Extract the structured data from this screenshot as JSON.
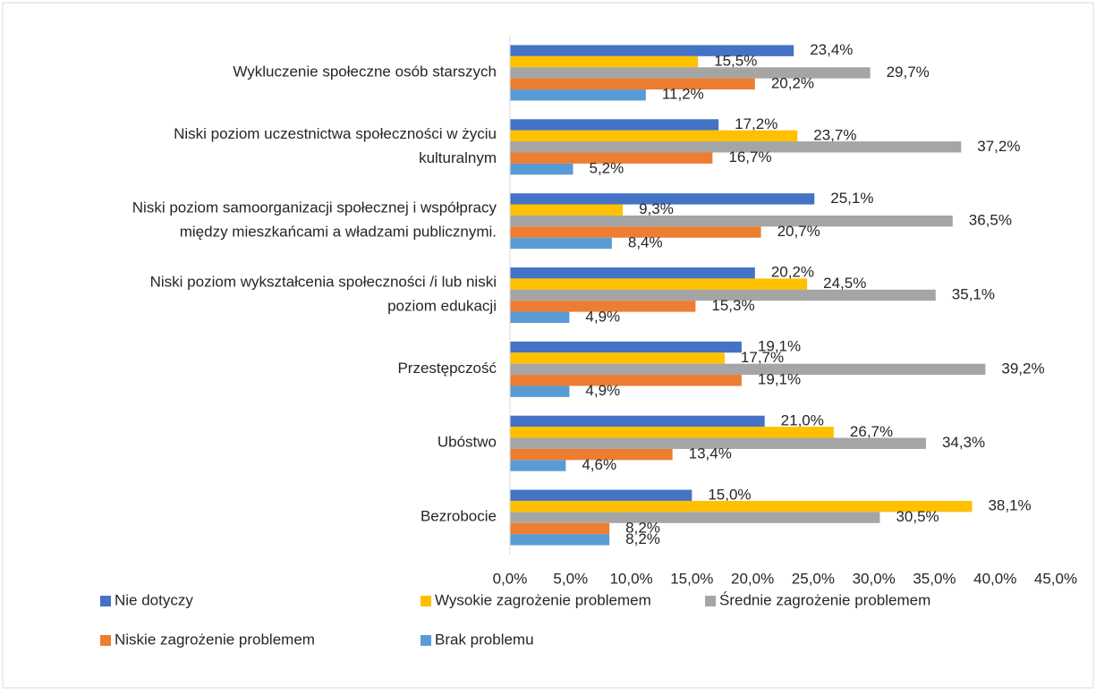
{
  "chart_data": {
    "type": "hbar",
    "categories": [
      [
        "Wykluczenie społeczne osób starszych"
      ],
      [
        "Niski poziom uczestnictwa społeczności w życiu",
        "kulturalnym"
      ],
      [
        "Niski poziom samoorganizacji społecznej i współpracy",
        "między mieszkańcami  a władzami publicznymi."
      ],
      [
        "Niski poziom wykształcenia społeczności /i lub niski",
        "poziom edukacji"
      ],
      [
        "Przestępczość"
      ],
      [
        "Ubóstwo"
      ],
      [
        "Bezrobocie"
      ]
    ],
    "series": [
      {
        "name": "Nie dotyczy",
        "color": "#4472c4",
        "values": [
          23.4,
          17.2,
          25.1,
          20.2,
          19.1,
          21.0,
          15.0
        ],
        "value_labels": [
          "23,4%",
          "17,2%",
          "25,1%",
          "20,2%",
          "19,1%",
          "21,0%",
          "15,0%"
        ]
      },
      {
        "name": "Wysokie zagrożenie problemem",
        "color": "#ffc000",
        "values": [
          15.5,
          23.7,
          9.3,
          24.5,
          17.7,
          26.7,
          38.1
        ],
        "value_labels": [
          "15,5%",
          "23,7%",
          "9,3%",
          "24,5%",
          "17,7%",
          "26,7%",
          "38,1%"
        ]
      },
      {
        "name": "Średnie zagrożenie problemem",
        "color": "#a5a5a5",
        "values": [
          29.7,
          37.2,
          36.5,
          35.1,
          39.2,
          34.3,
          30.5
        ],
        "value_labels": [
          "29,7%",
          "37,2%",
          "36,5%",
          "35,1%",
          "39,2%",
          "34,3%",
          "30,5%"
        ]
      },
      {
        "name": "Niskie zagrożenie problemem",
        "color": "#ed7d31",
        "values": [
          20.2,
          16.7,
          20.7,
          15.3,
          19.1,
          13.4,
          8.2
        ],
        "value_labels": [
          "20,2%",
          "16,7%",
          "20,7%",
          "15,3%",
          "19,1%",
          "13,4%",
          "8,2%"
        ]
      },
      {
        "name": "Brak problemu",
        "color": "#5b9bd5",
        "values": [
          11.2,
          5.2,
          8.4,
          4.9,
          4.9,
          4.6,
          8.2
        ],
        "value_labels": [
          "11,2%",
          "5,2%",
          "8,4%",
          "4,9%",
          "4,9%",
          "4,6%",
          "8,2%"
        ]
      }
    ],
    "xlim": [
      0,
      45
    ],
    "xticks": [
      {
        "value": 0,
        "label": "0,0%"
      },
      {
        "value": 5,
        "label": "5,0%"
      },
      {
        "value": 10,
        "label": "10,0%"
      },
      {
        "value": 15,
        "label": "15,0%"
      },
      {
        "value": 20,
        "label": "20,0%"
      },
      {
        "value": 25,
        "label": "25,0%"
      },
      {
        "value": 30,
        "label": "30,0%"
      },
      {
        "value": 35,
        "label": "35,0%"
      },
      {
        "value": 40,
        "label": "40,0%"
      },
      {
        "value": 45,
        "label": "45,0%"
      }
    ],
    "legend": "bottom"
  }
}
